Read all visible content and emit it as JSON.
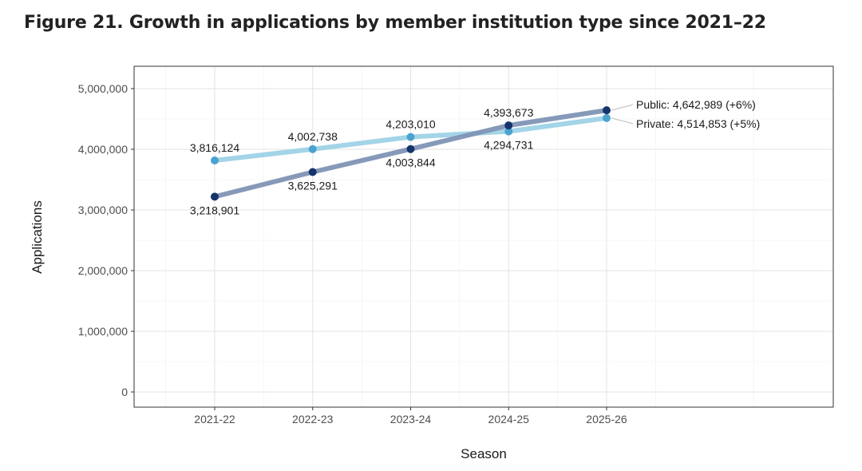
{
  "figure": {
    "title": "Figure 21. Growth in applications by member institution type since 2021–22"
  },
  "chart_data": {
    "type": "line",
    "xlabel": "Season",
    "ylabel": "Applications",
    "categories": [
      "2021-22",
      "2022-23",
      "2023-24",
      "2024-25",
      "2025-26"
    ],
    "ylim": [
      0,
      5000000
    ],
    "yticks": [
      0,
      1000000,
      2000000,
      3000000,
      4000000,
      5000000
    ],
    "ytick_labels": [
      "0",
      "1,000,000",
      "2,000,000",
      "3,000,000",
      "4,000,000",
      "5,000,000"
    ],
    "grid": true,
    "legend": "none",
    "series": [
      {
        "key": "private",
        "values": [
          3816124,
          4002738,
          4203010,
          4294731,
          4514853
        ],
        "labels": [
          "3,816,124",
          "4,002,738",
          "4,203,010",
          "4,294,731",
          ""
        ],
        "end_label": "Private: 4,514,853 (+5%)",
        "line_color": "#9ed2e6",
        "point_color": "#4aa3cf"
      },
      {
        "key": "public",
        "values": [
          3218901,
          3625291,
          4003844,
          4393673,
          4642989
        ],
        "labels": [
          "3,218,901",
          "3,625,291",
          "4,003,844",
          "4,393,673",
          ""
        ],
        "end_label": "Public: 4,642,989 (+6%)",
        "line_color": "#7f93b5",
        "point_color": "#14346b"
      }
    ]
  }
}
